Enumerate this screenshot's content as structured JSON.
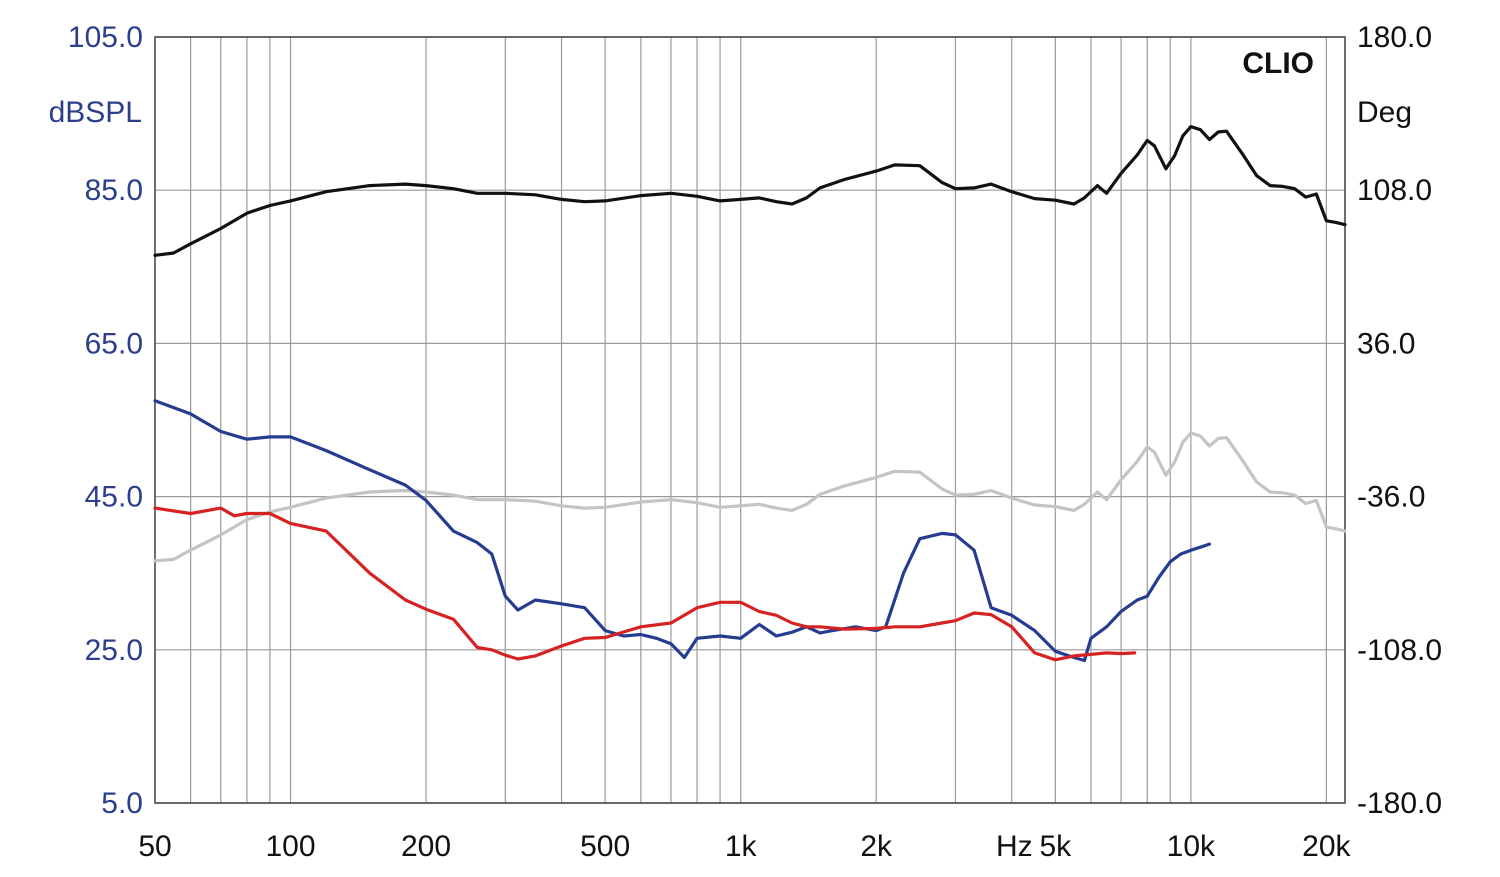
{
  "chart_data": {
    "type": "line",
    "brand": "CLIO",
    "x_axis": {
      "scale": "log",
      "range": [
        50,
        22000
      ],
      "ticks": [
        {
          "value": 50,
          "label": "50"
        },
        {
          "value": 100,
          "label": "100"
        },
        {
          "value": 200,
          "label": "200"
        },
        {
          "value": 500,
          "label": "500"
        },
        {
          "value": 1000,
          "label": "1k"
        },
        {
          "value": 2000,
          "label": "2k"
        },
        {
          "value": 5000,
          "label": "5k"
        },
        {
          "value": 10000,
          "label": "10k"
        },
        {
          "value": 20000,
          "label": "20k"
        }
      ],
      "unit_label": "Hz",
      "grid_values": [
        60,
        70,
        80,
        90,
        100,
        200,
        300,
        400,
        500,
        600,
        700,
        800,
        900,
        1000,
        2000,
        3000,
        4000,
        5000,
        6000,
        7000,
        8000,
        9000,
        10000,
        20000
      ]
    },
    "y_left": {
      "label": "dBSPL",
      "range": [
        5,
        105
      ],
      "ticks": [
        "105.0",
        "85.0",
        "65.0",
        "45.0",
        "25.0",
        "5.0"
      ],
      "tick_values": [
        105,
        85,
        65,
        45,
        25,
        5
      ]
    },
    "y_right": {
      "label": "Deg",
      "range": [
        -180,
        180
      ],
      "ticks": [
        "180.0",
        "108.0",
        "36.0",
        "-36.0",
        "-108.0",
        "-180.0"
      ],
      "tick_values": [
        180,
        108,
        36,
        -36,
        -108,
        -180
      ]
    },
    "grid": true,
    "series": [
      {
        "color": "#111111",
        "axis": "left",
        "points": [
          [
            50,
            76.5
          ],
          [
            55,
            76.8
          ],
          [
            60,
            78
          ],
          [
            70,
            80
          ],
          [
            80,
            82
          ],
          [
            90,
            83
          ],
          [
            100,
            83.6
          ],
          [
            120,
            84.8
          ],
          [
            150,
            85.6
          ],
          [
            180,
            85.8
          ],
          [
            200,
            85.6
          ],
          [
            230,
            85.2
          ],
          [
            260,
            84.6
          ],
          [
            300,
            84.6
          ],
          [
            350,
            84.4
          ],
          [
            400,
            83.8
          ],
          [
            450,
            83.5
          ],
          [
            500,
            83.6
          ],
          [
            600,
            84.3
          ],
          [
            700,
            84.6
          ],
          [
            800,
            84.2
          ],
          [
            900,
            83.6
          ],
          [
            1000,
            83.8
          ],
          [
            1100,
            84
          ],
          [
            1200,
            83.5
          ],
          [
            1300,
            83.2
          ],
          [
            1400,
            84
          ],
          [
            1500,
            85.3
          ],
          [
            1700,
            86.4
          ],
          [
            2000,
            87.5
          ],
          [
            2200,
            88.3
          ],
          [
            2500,
            88.2
          ],
          [
            2800,
            86
          ],
          [
            3000,
            85.2
          ],
          [
            3300,
            85.3
          ],
          [
            3600,
            85.8
          ],
          [
            4000,
            84.8
          ],
          [
            4500,
            83.9
          ],
          [
            5000,
            83.7
          ],
          [
            5500,
            83.2
          ],
          [
            5800,
            84
          ],
          [
            6200,
            85.6
          ],
          [
            6500,
            84.6
          ],
          [
            7000,
            87.2
          ],
          [
            7600,
            89.6
          ],
          [
            8000,
            91.5
          ],
          [
            8300,
            90.8
          ],
          [
            8800,
            87.8
          ],
          [
            9200,
            89.5
          ],
          [
            9600,
            92.1
          ],
          [
            10000,
            93.3
          ],
          [
            10500,
            92.9
          ],
          [
            11000,
            91.6
          ],
          [
            11500,
            92.6
          ],
          [
            12000,
            92.7
          ],
          [
            13000,
            89.8
          ],
          [
            14000,
            86.9
          ],
          [
            15000,
            85.6
          ],
          [
            16000,
            85.5
          ],
          [
            17000,
            85.2
          ],
          [
            18000,
            84.1
          ],
          [
            19000,
            84.5
          ],
          [
            20000,
            81
          ],
          [
            21000,
            80.8
          ],
          [
            22000,
            80.5
          ]
        ]
      },
      {
        "color": "#c4c4c4",
        "axis": "left",
        "points": [
          [
            50,
            36.6
          ],
          [
            55,
            36.8
          ],
          [
            60,
            38
          ],
          [
            70,
            40
          ],
          [
            80,
            42
          ],
          [
            90,
            43
          ],
          [
            100,
            43.6
          ],
          [
            120,
            44.8
          ],
          [
            150,
            45.6
          ],
          [
            180,
            45.8
          ],
          [
            200,
            45.6
          ],
          [
            230,
            45.2
          ],
          [
            260,
            44.6
          ],
          [
            300,
            44.6
          ],
          [
            350,
            44.4
          ],
          [
            400,
            43.8
          ],
          [
            450,
            43.5
          ],
          [
            500,
            43.6
          ],
          [
            600,
            44.3
          ],
          [
            700,
            44.6
          ],
          [
            800,
            44.2
          ],
          [
            900,
            43.6
          ],
          [
            1000,
            43.8
          ],
          [
            1100,
            44
          ],
          [
            1200,
            43.5
          ],
          [
            1300,
            43.2
          ],
          [
            1400,
            44
          ],
          [
            1500,
            45.3
          ],
          [
            1700,
            46.4
          ],
          [
            2000,
            47.5
          ],
          [
            2200,
            48.3
          ],
          [
            2500,
            48.2
          ],
          [
            2800,
            46
          ],
          [
            3000,
            45.2
          ],
          [
            3300,
            45.3
          ],
          [
            3600,
            45.8
          ],
          [
            4000,
            44.8
          ],
          [
            4500,
            43.9
          ],
          [
            5000,
            43.7
          ],
          [
            5500,
            43.2
          ],
          [
            5800,
            44
          ],
          [
            6200,
            45.6
          ],
          [
            6500,
            44.6
          ],
          [
            7000,
            47.2
          ],
          [
            7600,
            49.6
          ],
          [
            8000,
            51.5
          ],
          [
            8300,
            50.8
          ],
          [
            8800,
            47.8
          ],
          [
            9200,
            49.5
          ],
          [
            9600,
            52.1
          ],
          [
            10000,
            53.3
          ],
          [
            10500,
            52.9
          ],
          [
            11000,
            51.6
          ],
          [
            11500,
            52.6
          ],
          [
            12000,
            52.7
          ],
          [
            13000,
            49.8
          ],
          [
            14000,
            46.9
          ],
          [
            15000,
            45.6
          ],
          [
            16000,
            45.5
          ],
          [
            17000,
            45.2
          ],
          [
            18000,
            44.1
          ],
          [
            19000,
            44.5
          ],
          [
            20000,
            41
          ],
          [
            21000,
            40.8
          ],
          [
            22000,
            40.5
          ]
        ]
      },
      {
        "color": "#263c90",
        "axis": "left",
        "points": [
          [
            50,
            57.5
          ],
          [
            60,
            55.8
          ],
          [
            70,
            53.5
          ],
          [
            80,
            52.5
          ],
          [
            90,
            52.8
          ],
          [
            100,
            52.8
          ],
          [
            120,
            51
          ],
          [
            150,
            48.5
          ],
          [
            180,
            46.5
          ],
          [
            200,
            44.5
          ],
          [
            230,
            40.5
          ],
          [
            260,
            39
          ],
          [
            280,
            37.5
          ],
          [
            300,
            32
          ],
          [
            320,
            30.2
          ],
          [
            350,
            31.5
          ],
          [
            400,
            31
          ],
          [
            450,
            30.5
          ],
          [
            500,
            27.5
          ],
          [
            550,
            26.8
          ],
          [
            600,
            27
          ],
          [
            650,
            26.5
          ],
          [
            700,
            25.8
          ],
          [
            750,
            24
          ],
          [
            800,
            26.5
          ],
          [
            900,
            26.8
          ],
          [
            1000,
            26.5
          ],
          [
            1100,
            28.3
          ],
          [
            1200,
            26.8
          ],
          [
            1300,
            27.3
          ],
          [
            1400,
            28
          ],
          [
            1500,
            27.2
          ],
          [
            1600,
            27.5
          ],
          [
            1800,
            28
          ],
          [
            2000,
            27.5
          ],
          [
            2100,
            28
          ],
          [
            2300,
            35
          ],
          [
            2500,
            39.5
          ],
          [
            2800,
            40.2
          ],
          [
            3000,
            40
          ],
          [
            3300,
            38
          ],
          [
            3600,
            30.5
          ],
          [
            4000,
            29.5
          ],
          [
            4500,
            27.5
          ],
          [
            5000,
            24.8
          ],
          [
            5500,
            24
          ],
          [
            5800,
            23.6
          ],
          [
            6000,
            26.5
          ],
          [
            6500,
            28
          ],
          [
            7000,
            30
          ],
          [
            7600,
            31.5
          ],
          [
            8000,
            32
          ],
          [
            8500,
            34.5
          ],
          [
            9000,
            36.5
          ],
          [
            9500,
            37.5
          ],
          [
            10000,
            38
          ],
          [
            10500,
            38.4
          ],
          [
            11000,
            38.8
          ]
        ]
      },
      {
        "color": "#d62222",
        "axis": "left",
        "points": [
          [
            50,
            43.5
          ],
          [
            60,
            42.8
          ],
          [
            70,
            43.5
          ],
          [
            75,
            42.5
          ],
          [
            80,
            42.8
          ],
          [
            90,
            42.8
          ],
          [
            100,
            41.5
          ],
          [
            120,
            40.5
          ],
          [
            150,
            35
          ],
          [
            180,
            31.5
          ],
          [
            200,
            30.3
          ],
          [
            230,
            29
          ],
          [
            260,
            25.3
          ],
          [
            280,
            25
          ],
          [
            300,
            24.3
          ],
          [
            320,
            23.8
          ],
          [
            350,
            24.2
          ],
          [
            400,
            25.5
          ],
          [
            450,
            26.5
          ],
          [
            500,
            26.6
          ],
          [
            600,
            28
          ],
          [
            700,
            28.5
          ],
          [
            800,
            30.5
          ],
          [
            900,
            31.2
          ],
          [
            1000,
            31.2
          ],
          [
            1100,
            30
          ],
          [
            1200,
            29.5
          ],
          [
            1300,
            28.5
          ],
          [
            1400,
            28
          ],
          [
            1500,
            28
          ],
          [
            1700,
            27.7
          ],
          [
            2000,
            27.8
          ],
          [
            2200,
            28
          ],
          [
            2500,
            28
          ],
          [
            2800,
            28.5
          ],
          [
            3000,
            28.8
          ],
          [
            3300,
            29.8
          ],
          [
            3600,
            29.6
          ],
          [
            4000,
            28
          ],
          [
            4500,
            24.6
          ],
          [
            5000,
            23.7
          ],
          [
            5500,
            24.2
          ],
          [
            6000,
            24.4
          ],
          [
            6500,
            24.6
          ],
          [
            7000,
            24.5
          ],
          [
            7500,
            24.6
          ]
        ]
      }
    ]
  }
}
